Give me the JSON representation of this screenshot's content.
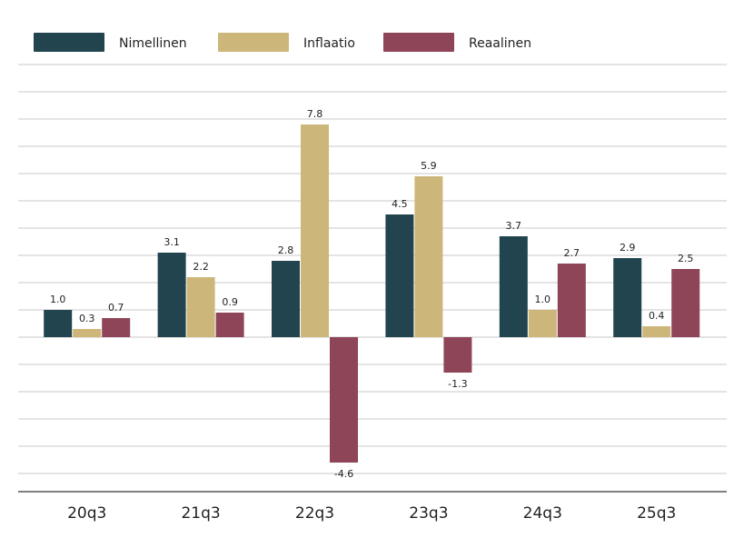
{
  "chart_data": {
    "type": "bar",
    "categories": [
      "20q3",
      "21q3",
      "22q3",
      "23q3",
      "24q3",
      "25q3"
    ],
    "series": [
      {
        "name": "Nimellinen",
        "color": "#21444f",
        "values": [
          1.0,
          3.1,
          2.8,
          4.5,
          3.7,
          2.9
        ]
      },
      {
        "name": "Inflaatio",
        "color": "#cdb679",
        "values": [
          0.3,
          2.2,
          7.8,
          5.9,
          1.0,
          0.4
        ]
      },
      {
        "name": "Reaalinen",
        "color": "#8e4558",
        "values": [
          0.7,
          0.9,
          -4.6,
          -1.3,
          2.7,
          2.5
        ]
      }
    ],
    "title": "",
    "xlabel": "",
    "ylabel": "",
    "ylim": [
      -5.5,
      10
    ],
    "grid": true,
    "legend": "top",
    "data_labels": true
  }
}
